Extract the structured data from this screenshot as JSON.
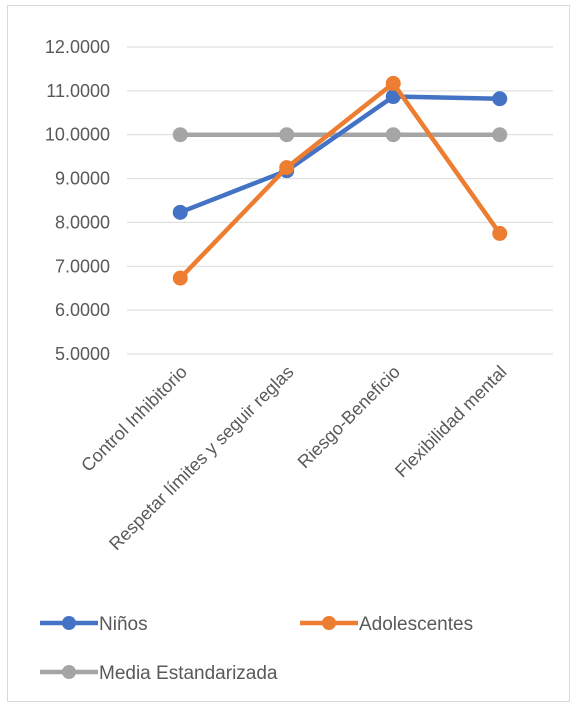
{
  "chart_data": {
    "type": "line",
    "categories": [
      "Control Inhibitorio",
      "Respetar límites y seguir reglas",
      "Riesgo-Beneficio",
      "Flexibilidad mental"
    ],
    "series": [
      {
        "name": "Niños",
        "values": [
          8.23,
          9.18,
          10.87,
          10.82
        ],
        "color": "#4472c4"
      },
      {
        "name": "Adolescentes",
        "values": [
          6.73,
          9.25,
          11.17,
          7.75
        ],
        "color": "#ed7d31"
      },
      {
        "name": "Media Estandarizada",
        "values": [
          10.0,
          10.0,
          10.0,
          10.0
        ],
        "color": "#a5a5a5"
      }
    ],
    "ylim": [
      5,
      12
    ],
    "yticks": [
      "5.0000",
      "6.0000",
      "7.0000",
      "8.0000",
      "9.0000",
      "10.0000",
      "11.0000",
      "12.0000"
    ],
    "ytick_values": [
      5,
      6,
      7,
      8,
      9,
      10,
      11,
      12
    ],
    "grid": true,
    "legend": "bottom"
  }
}
